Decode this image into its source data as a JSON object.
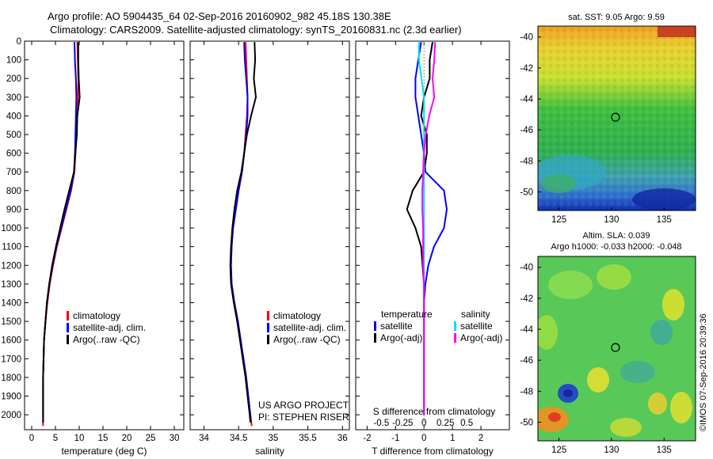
{
  "header": {
    "line1": "Argo profile: AO 5904435_64 02-Sep-2016 20160902_982 45.18S 130.38E",
    "line2": "Climatology: CARS2009. Satellite-adjusted climatology: synTS_20160831.nc (2.3d earlier)"
  },
  "colors": {
    "climatology": "#ff0000",
    "satellite": "#0000ff",
    "argo": "#000000",
    "salinity_satellite": "#00e0f0",
    "salinity_argo": "#ff00ff"
  },
  "chart_data": [
    {
      "type": "line",
      "id": "temperature-profile",
      "xlabel": "temperature (deg C)",
      "xlim": [
        -1.5,
        32
      ],
      "x_ticks": [
        "0",
        "5",
        "10",
        "15",
        "20",
        "25",
        "30"
      ],
      "x_tick_values": [
        0,
        5,
        10,
        15,
        20,
        25,
        30
      ],
      "ylim": [
        0,
        2080
      ],
      "y_reversed": true,
      "y_ticks": [
        "0",
        "100",
        "200",
        "300",
        "400",
        "500",
        "600",
        "700",
        "800",
        "900",
        "1000",
        "1100",
        "1200",
        "1300",
        "1400",
        "1500",
        "1600",
        "1700",
        "1800",
        "1900",
        "2000"
      ],
      "y_tick_values": [
        0,
        100,
        200,
        300,
        400,
        500,
        600,
        700,
        800,
        900,
        1000,
        1100,
        1200,
        1300,
        1400,
        1500,
        1600,
        1700,
        1800,
        1900,
        2000
      ],
      "legend": [
        "climatology",
        "satellite-adj. clim.",
        "Argo(..raw -QC)"
      ],
      "legend_position": "lower-middle",
      "series": [
        {
          "name": "climatology",
          "color_key": "climatology",
          "x": [
            9.6,
            9.7,
            9.8,
            9.7,
            9.5,
            9.3,
            9.2,
            9.0,
            8.3,
            7.3,
            6.3,
            5.3,
            4.5,
            3.8,
            3.3,
            2.9,
            2.6,
            2.5,
            2.4,
            2.4,
            2.4,
            2.4,
            2.4
          ],
          "y": [
            5,
            100,
            200,
            300,
            400,
            500,
            600,
            700,
            800,
            900,
            1000,
            1100,
            1200,
            1300,
            1400,
            1500,
            1600,
            1700,
            1800,
            1900,
            2000,
            2040,
            2060
          ]
        },
        {
          "name": "satellite-adj. clim.",
          "color_key": "satellite",
          "x": [
            9.0,
            9.1,
            9.3,
            9.4,
            9.3,
            9.2,
            9.1,
            8.9,
            8.2,
            7.2,
            6.2,
            5.2,
            4.4,
            3.7,
            3.2,
            2.9,
            2.6,
            2.5,
            2.4,
            2.4,
            2.4,
            2.4
          ],
          "y": [
            5,
            100,
            200,
            300,
            400,
            500,
            600,
            700,
            800,
            900,
            1000,
            1100,
            1200,
            1300,
            1400,
            1500,
            1600,
            1700,
            1800,
            1900,
            2000,
            2040
          ]
        },
        {
          "name": "Argo(..raw -QC)",
          "color_key": "argo",
          "x": [
            9.8,
            9.8,
            9.9,
            10.1,
            9.6,
            9.5,
            9.2,
            8.9,
            7.9,
            6.9,
            6.0,
            5.1,
            4.3,
            3.7,
            3.2,
            2.9,
            2.6,
            2.5,
            2.4,
            2.4,
            2.4,
            2.4
          ],
          "y": [
            5,
            100,
            200,
            300,
            400,
            500,
            600,
            700,
            800,
            900,
            1000,
            1100,
            1200,
            1300,
            1400,
            1500,
            1600,
            1700,
            1800,
            1900,
            2000,
            2040
          ]
        }
      ]
    },
    {
      "type": "line",
      "id": "salinity-profile",
      "xlabel": "salinity",
      "xlim": [
        33.8,
        36.1
      ],
      "x_ticks": [
        "34",
        "34.5",
        "35",
        "35.5",
        "36"
      ],
      "x_tick_values": [
        34,
        34.5,
        35,
        35.5,
        36
      ],
      "ylim": [
        0,
        2080
      ],
      "y_reversed": true,
      "legend": [
        "climatology",
        "satellite-adj. clim.",
        "Argo(..raw -QC)"
      ],
      "legend_position": "lower-right",
      "annotation": [
        "US ARGO PROJECT",
        "PI: STEPHEN RISER"
      ],
      "series": [
        {
          "name": "climatology",
          "color_key": "climatology",
          "x": [
            34.6,
            34.61,
            34.62,
            34.63,
            34.62,
            34.6,
            34.58,
            34.55,
            34.5,
            34.46,
            34.42,
            34.4,
            34.39,
            34.4,
            34.44,
            34.49,
            34.53,
            34.57,
            34.61,
            34.64,
            34.67,
            34.69
          ],
          "y": [
            5,
            100,
            200,
            300,
            400,
            500,
            600,
            700,
            800,
            900,
            1000,
            1100,
            1200,
            1300,
            1400,
            1500,
            1600,
            1700,
            1800,
            1900,
            2000,
            2060
          ]
        },
        {
          "name": "satellite-adj. clim.",
          "color_key": "satellite",
          "x": [
            34.58,
            34.59,
            34.61,
            34.63,
            34.63,
            34.61,
            34.58,
            34.55,
            34.5,
            34.46,
            34.42,
            34.4,
            34.39,
            34.4,
            34.44,
            34.49,
            34.53,
            34.57,
            34.61,
            34.64,
            34.67,
            34.68
          ],
          "y": [
            5,
            100,
            200,
            300,
            400,
            500,
            600,
            700,
            800,
            900,
            1000,
            1100,
            1200,
            1300,
            1400,
            1500,
            1600,
            1700,
            1800,
            1900,
            2000,
            2040
          ]
        },
        {
          "name": "Argo(..raw -QC)",
          "color_key": "argo",
          "x": [
            34.73,
            34.74,
            34.72,
            34.75,
            34.68,
            34.62,
            34.58,
            34.54,
            34.48,
            34.44,
            34.41,
            34.39,
            34.38,
            34.39,
            34.43,
            34.48,
            34.52,
            34.56,
            34.6,
            34.63,
            34.66,
            34.67
          ],
          "y": [
            5,
            100,
            200,
            300,
            400,
            500,
            600,
            700,
            800,
            900,
            1000,
            1100,
            1200,
            1300,
            1400,
            1500,
            1600,
            1700,
            1800,
            1900,
            2000,
            2040
          ]
        }
      ]
    },
    {
      "type": "line",
      "id": "difference-profile",
      "xlabel": "T difference from climatology",
      "top_axis_label": "S difference from climatology",
      "xlim": [
        -2.4,
        3.0
      ],
      "x_ticks": [
        "-2",
        "-1",
        "0",
        "1",
        "2"
      ],
      "x_tick_values": [
        -2,
        -1,
        0,
        1,
        2
      ],
      "s_ticks": [
        "-0.5",
        "-0.25",
        "0",
        "0.25",
        "0.5"
      ],
      "s_tick_values": [
        -0.5,
        -0.25,
        0,
        0.25,
        0.5
      ],
      "s_to_t_scale": 3,
      "ylim": [
        0,
        2080
      ],
      "y_reversed": true,
      "legend_headers": [
        "temperature",
        "salinity"
      ],
      "legend": [
        "satellite",
        "Argo(-adj)",
        "satellite",
        "Argo(-adj)"
      ],
      "legend_position": "lower-middle",
      "series": [
        {
          "name": "temperature satellite",
          "color_key": "satellite",
          "x": [
            -0.1,
            -0.2,
            -0.3,
            -0.3,
            -0.2,
            -0.1,
            0.0,
            0.05,
            0.7,
            0.8,
            0.7,
            0.35,
            0.15,
            0.05,
            0.0,
            0.0,
            0.0,
            0.0,
            0.0,
            0.0,
            0.0
          ],
          "y": [
            5,
            100,
            200,
            300,
            400,
            500,
            600,
            700,
            800,
            900,
            1000,
            1100,
            1200,
            1300,
            1400,
            1500,
            1600,
            1700,
            1800,
            1900,
            2000
          ]
        },
        {
          "name": "temperature Argo(-adj)",
          "color_key": "argo",
          "x": [
            0.3,
            0.2,
            0.2,
            0.0,
            -0.1,
            0.1,
            0.1,
            0.0,
            -0.4,
            -0.6,
            -0.3,
            -0.1,
            -0.05,
            0.0,
            0.0,
            0.0,
            0.0,
            0.0,
            0.0,
            0.0,
            0.0
          ],
          "y": [
            5,
            100,
            200,
            300,
            400,
            500,
            600,
            700,
            800,
            900,
            1000,
            1100,
            1200,
            1300,
            1400,
            1500,
            1600,
            1700,
            1800,
            1900,
            2000
          ]
        },
        {
          "name": "salinity satellite",
          "color_key": "salinity_satellite",
          "x": [
            -0.06,
            -0.06,
            -0.03,
            0.0,
            0.0,
            0.0,
            0.0,
            0.0,
            0.0,
            0.0,
            0.0,
            0.0,
            0.0,
            0.0,
            0.0,
            0.0,
            0.0,
            0.0,
            0.0,
            0.0,
            0.0
          ],
          "y": [
            5,
            100,
            200,
            300,
            400,
            500,
            600,
            700,
            800,
            900,
            1000,
            1100,
            1200,
            1300,
            1400,
            1500,
            1600,
            1700,
            1800,
            1900,
            2000
          ]
        },
        {
          "name": "salinity Argo(-adj)",
          "color_key": "salinity_argo",
          "x": [
            0.13,
            0.12,
            0.1,
            0.12,
            0.06,
            0.02,
            0.0,
            -0.01,
            -0.02,
            -0.02,
            -0.01,
            -0.01,
            -0.01,
            0.0,
            0.0,
            0.0,
            0.0,
            0.0,
            0.0,
            0.0,
            0.0
          ],
          "y": [
            5,
            100,
            200,
            300,
            400,
            500,
            600,
            700,
            800,
            900,
            1000,
            1100,
            1200,
            1300,
            1400,
            1500,
            1600,
            1700,
            1800,
            1900,
            2000
          ]
        }
      ]
    },
    {
      "type": "heatmap",
      "id": "sst-map",
      "title": "sat. SST: 9.05 Argo: 9.59",
      "xlim": [
        123,
        138
      ],
      "ylim": [
        -51.2,
        -39.3
      ],
      "x_ticks": [
        "125",
        "130",
        "135"
      ],
      "x_tick_values": [
        125,
        130,
        135
      ],
      "y_ticks": [
        "-40",
        "-42",
        "-44",
        "-46",
        "-48",
        "-50"
      ],
      "y_tick_values": [
        -40,
        -42,
        -44,
        -46,
        -48,
        -50
      ],
      "float_position": [
        130.38,
        -45.18
      ]
    },
    {
      "type": "heatmap",
      "id": "sla-map",
      "title_lines": [
        "Altim. SLA: 0.039",
        "Argo h1000: -0.033 h2000: -0.048"
      ],
      "xlim": [
        123,
        138
      ],
      "ylim": [
        -51.2,
        -39.3
      ],
      "x_ticks": [
        "125",
        "130",
        "135"
      ],
      "x_tick_values": [
        125,
        130,
        135
      ],
      "y_ticks": [
        "-40",
        "-42",
        "-44",
        "-46",
        "-48",
        "-50"
      ],
      "y_tick_values": [
        -40,
        -42,
        -44,
        -46,
        -48,
        -50
      ],
      "float_position": [
        130.38,
        -45.18
      ]
    }
  ],
  "credit": "©IMOS 07-Sep-2016 20:39:36"
}
